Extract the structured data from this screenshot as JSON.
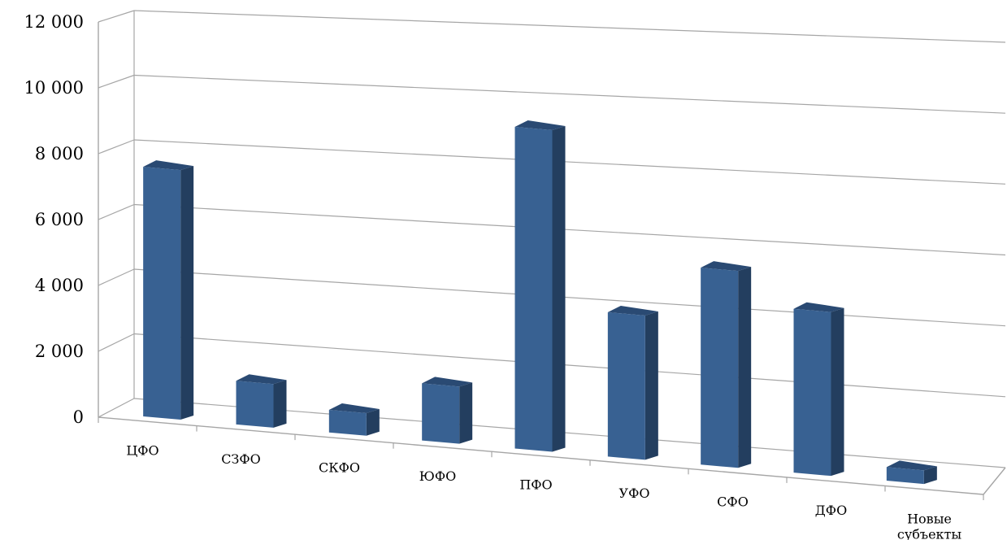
{
  "chart_data": {
    "type": "bar",
    "categories": [
      "ЦФО",
      "СЗФО",
      "СКФО",
      "ЮФО",
      "ПФО",
      "УФО",
      "СФО",
      "ДФО",
      "Новые субъекты"
    ],
    "values": [
      8300,
      1450,
      750,
      1900,
      10700,
      4800,
      6550,
      5450,
      450
    ],
    "yticks": [
      "0",
      "2 000",
      "4 000",
      "6 000",
      "8 000",
      "10 000",
      "12 000"
    ],
    "ylim": [
      0,
      12000
    ],
    "title": "",
    "xlabel": "",
    "ylabel": "",
    "grid": true,
    "colors": {
      "front": "#386192",
      "side": "#233e5f",
      "top": "#2a4a73",
      "grid": "#a6a6a6"
    }
  }
}
